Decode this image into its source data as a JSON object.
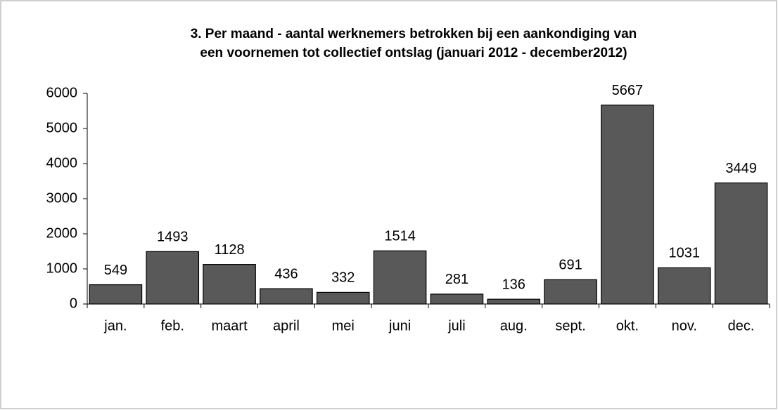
{
  "chart_data": {
    "type": "bar",
    "title": [
      "3. Per maand - aantal werknemers betrokken bij een aankondiging van",
      "een voornemen tot collectief ontslag (januari 2012 - december2012)"
    ],
    "categories": [
      "jan.",
      "feb.",
      "maart",
      "april",
      "mei",
      "juni",
      "juli",
      "aug.",
      "sept.",
      "okt.",
      "nov.",
      "dec."
    ],
    "values": [
      549,
      1493,
      1128,
      436,
      332,
      1514,
      281,
      136,
      691,
      5667,
      1031,
      3449
    ],
    "color": "#595959",
    "ylim": [
      0,
      6000
    ],
    "yticks": [
      0,
      1000,
      2000,
      3000,
      4000,
      5000,
      6000
    ],
    "grid": false
  }
}
